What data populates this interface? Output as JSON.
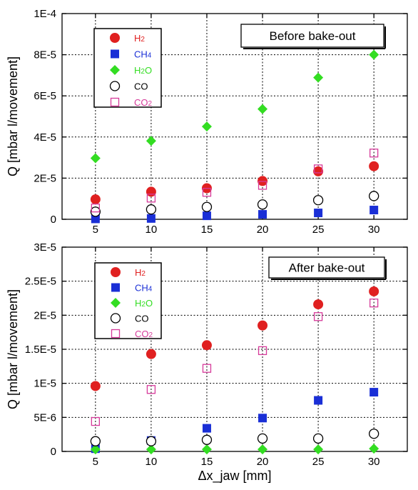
{
  "chart_data": [
    {
      "type": "scatter",
      "annotation": "Before bake-out",
      "ylabel": "Q [mbar l/movement]",
      "xlabel": "",
      "xlim": [
        2,
        33
      ],
      "ylim": [
        0,
        0.0001
      ],
      "x_ticks": [
        5,
        10,
        15,
        20,
        25,
        30
      ],
      "x_tick_labels": [
        "5",
        "10",
        "15",
        "20",
        "25",
        "30"
      ],
      "y_ticks": [
        0,
        2e-05,
        4e-05,
        6e-05,
        8e-05,
        0.0001
      ],
      "y_tick_labels": [
        "0",
        "2E-5",
        "4E-5",
        "6E-5",
        "8E-5",
        "1E-4"
      ],
      "grid": true,
      "legend_position": "top-left",
      "x": [
        5,
        10,
        15,
        20,
        25,
        30
      ],
      "series": [
        {
          "name": "H2",
          "marker": "filled-circle",
          "color": "#e02020",
          "values": [
            9.7e-06,
            1.34e-05,
            1.51e-05,
            1.86e-05,
            2.33e-05,
            2.58e-05
          ]
        },
        {
          "name": "CH4",
          "marker": "filled-square",
          "color": "#1a2fd6",
          "values": [
            2e-07,
            4e-07,
            1.7e-06,
            2.4e-06,
            3.1e-06,
            4.5e-06
          ]
        },
        {
          "name": "H2O",
          "marker": "filled-diamond",
          "color": "#33dd22",
          "values": [
            2.97e-05,
            3.81e-05,
            4.51e-05,
            5.36e-05,
            6.89e-05,
            8e-05
          ]
        },
        {
          "name": "CO",
          "marker": "open-circle",
          "color": "#000000",
          "values": [
            3.7e-06,
            4.8e-06,
            6e-06,
            7.2e-06,
            9.3e-06,
            1.13e-05
          ]
        },
        {
          "name": "CO2",
          "marker": "open-square",
          "color": "#d63a9a",
          "values": [
            5.5e-06,
            1.03e-05,
            1.31e-05,
            1.65e-05,
            2.45e-05,
            3.22e-05
          ]
        }
      ]
    },
    {
      "type": "scatter",
      "annotation": "After bake-out",
      "ylabel": "Q [mbar l/movement]",
      "xlabel": "Δx_jaw [mm]",
      "xlim": [
        2,
        33
      ],
      "ylim": [
        0,
        3e-05
      ],
      "x_ticks": [
        5,
        10,
        15,
        20,
        25,
        30
      ],
      "x_tick_labels": [
        "5",
        "10",
        "15",
        "20",
        "25",
        "30"
      ],
      "y_ticks": [
        0,
        5e-06,
        1e-05,
        1.5e-05,
        2e-05,
        2.5e-05,
        3e-05
      ],
      "y_tick_labels": [
        "0",
        "5E-6",
        "1E-5",
        "1.5E-5",
        "2E-5",
        "2.5E-5",
        "3E-5"
      ],
      "grid": true,
      "legend_position": "top-left",
      "x": [
        5,
        10,
        15,
        20,
        25,
        30
      ],
      "series": [
        {
          "name": "H2",
          "marker": "filled-circle",
          "color": "#e02020",
          "values": [
            9.6e-06,
            1.43e-05,
            1.56e-05,
            1.85e-05,
            2.16e-05,
            2.35e-05
          ]
        },
        {
          "name": "CH4",
          "marker": "filled-square",
          "color": "#1a2fd6",
          "values": [
            4e-07,
            1.6e-06,
            3.4e-06,
            4.9e-06,
            7.5e-06,
            8.7e-06
          ]
        },
        {
          "name": "H2O",
          "marker": "filled-diamond",
          "color": "#33dd22",
          "values": [
            3e-07,
            3e-07,
            3e-07,
            3e-07,
            3e-07,
            4e-07
          ]
        },
        {
          "name": "CO",
          "marker": "open-circle",
          "color": "#000000",
          "values": [
            1.5e-06,
            1.5e-06,
            1.7e-06,
            1.9e-06,
            1.9e-06,
            2.6e-06
          ]
        },
        {
          "name": "CO2",
          "marker": "open-square",
          "color": "#d63a9a",
          "values": [
            4.4e-06,
            9.1e-06,
            1.22e-05,
            1.48e-05,
            1.98e-05,
            2.18e-05
          ]
        }
      ]
    }
  ]
}
